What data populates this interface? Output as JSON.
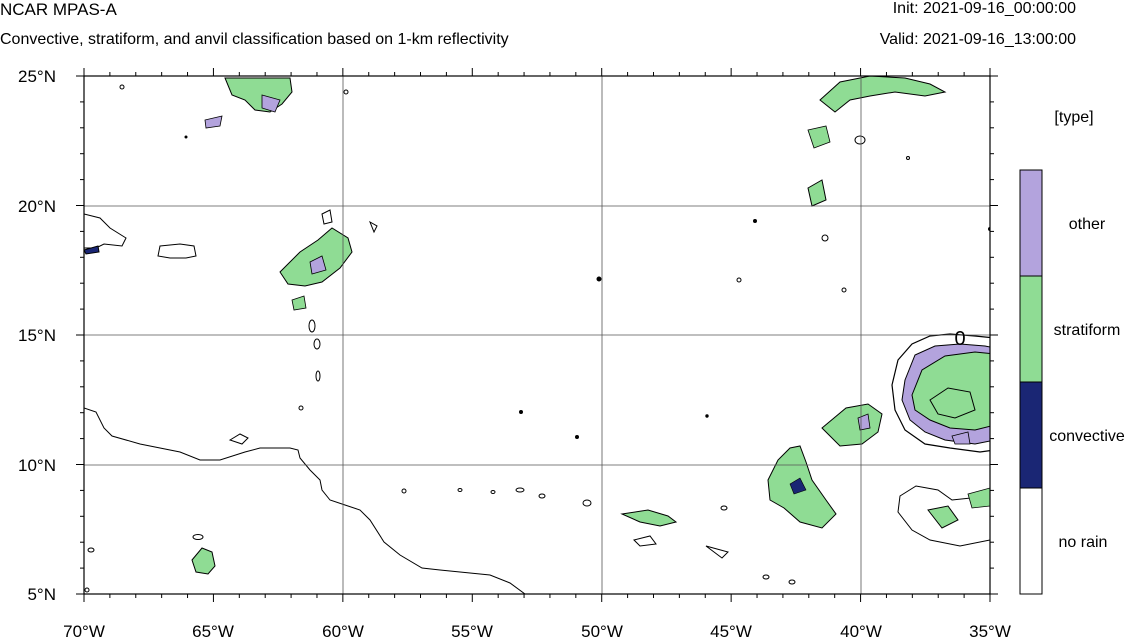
{
  "header": {
    "model": "NCAR MPAS-A",
    "subtitle": "Convective, stratiform, and anvil classification based on 1-km reflectivity",
    "init": "Init: 2021-09-16_00:00:00",
    "valid": "Valid: 2021-09-16_13:00:00"
  },
  "map": {
    "lon_range": [
      -70,
      -35
    ],
    "lat_range": [
      5,
      25
    ],
    "lon_ticks": [
      "70°W",
      "65°W",
      "60°W",
      "55°W",
      "50°W",
      "45°W",
      "40°W",
      "35°W"
    ],
    "lat_ticks": [
      "25°N",
      "20°N",
      "15°N",
      "10°N",
      "5°N"
    ],
    "contour_label": "0",
    "grid": true
  },
  "legend": {
    "title": "[type]",
    "items": [
      {
        "label": "other",
        "color": "#b3a3dd"
      },
      {
        "label": "stratiform",
        "color": "#8fdc94"
      },
      {
        "label": "convective",
        "color": "#1a2674"
      },
      {
        "label": "no rain",
        "color": "#ffffff"
      }
    ]
  }
}
